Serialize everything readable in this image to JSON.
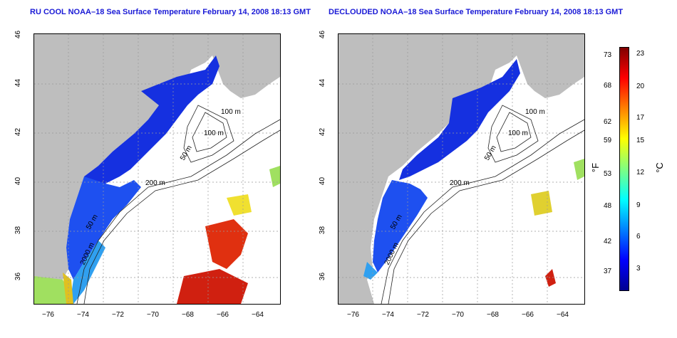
{
  "panels": [
    {
      "title": "RU COOL NOAA–18 Sea Surface Temperature February 14, 2008 18:13 GMT",
      "contours": [
        "100 m",
        "100 m",
        "50 m",
        "200 m",
        "50 m",
        "2000 m"
      ]
    },
    {
      "title": "DECLOUDED NOAA–18 Sea Surface Temperature February 14, 2008 18:13 GMT",
      "contours": [
        "100 m",
        "100 m",
        "50 m",
        "200 m",
        "50 m",
        "2000 m"
      ]
    }
  ],
  "axes": {
    "x_ticks": [
      "−76",
      "−74",
      "−72",
      "−70",
      "−68",
      "−66",
      "−64"
    ],
    "y_ticks": [
      "36",
      "38",
      "40",
      "42",
      "44",
      "46"
    ]
  },
  "colorbar": {
    "unit_f": "°F",
    "unit_c": "°C",
    "f_ticks": [
      "73",
      "68",
      "62",
      "59",
      "53",
      "48",
      "42",
      "37"
    ],
    "c_ticks": [
      "23",
      "20",
      "17",
      "15",
      "12",
      "9",
      "6",
      "3"
    ],
    "colors": [
      "#000090",
      "#0000ff",
      "#0080ff",
      "#00ffff",
      "#80ff80",
      "#ffff00",
      "#ff8000",
      "#ff0000",
      "#800000"
    ]
  }
}
